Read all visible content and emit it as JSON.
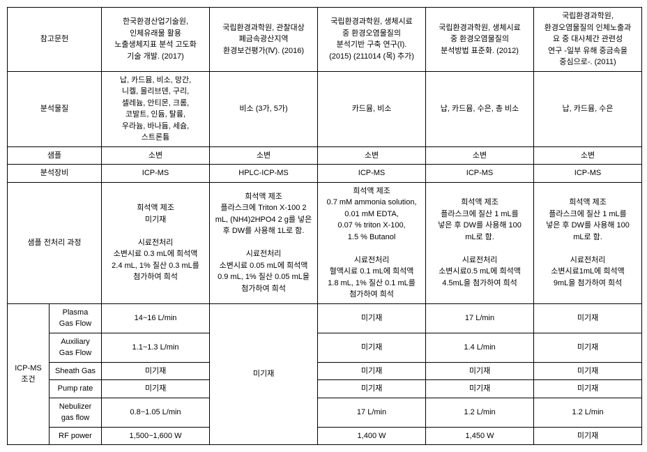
{
  "headers": {
    "ref": "참고문헌",
    "substance": "분석물질",
    "sample": "샘플",
    "equipment": "분석장비",
    "pretreatment": "샘플 전처리 과정",
    "icpms": "ICP-MS\n조건",
    "plasma": "Plasma\nGas Flow",
    "auxiliary": "Auxiliary\nGas Flow",
    "sheath": "Sheath Gas",
    "pump": "Pump rate",
    "nebulizer": "Nebulizer\ngas flow",
    "rfpower": "RF power"
  },
  "cols": {
    "c1": {
      "ref": "한국환경산업기술원,\n인체유래물 활용\n노출생체지표 분석 고도화\n기술 개발. (2017)",
      "substance": "납, 카드뮴, 비소, 망간,\n니켈, 몰리브덴, 구리,\n셀레늄, 안티몬, 크롬,\n코발트, 인듐, 탈륨,\n우라늄, 바나듐, 세슘,\n스트론튬",
      "sample": "소변",
      "equipment": "ICP-MS",
      "pretreatment": "희석액 제조\n미기재\n\n시료전처리\n소변시료 0.3 mL에 희석액\n2.4 mL, 1% 질산 0.3 mL를\n첨가하여 희석",
      "plasma": "14~16 L/min",
      "auxiliary": "1.1~1.3 L/min",
      "sheath": "미기재",
      "pump": "미기재",
      "nebulizer": "0.8~1.05 L/min",
      "rfpower": "1,500~1,600 W"
    },
    "c2": {
      "ref": "국립환경과학원, 관찰대상\n폐금속광산지역\n환경보건평가(Ⅳ). (2016)",
      "substance": "비소 (3가, 5가)",
      "sample": "소변",
      "equipment": "HPLC-ICP-MS",
      "pretreatment": "희석액 제조\n플라스크에 Triton X-100 2\nmL, (NH4)2HPO4 2 g를 넣은\n후 DW를 사용해 1L로 함.\n\n시료전처리\n소변시료 0.05 mL에 희석액\n0.9 mL, 1% 질산 0.05 mL을\n첨가하여 희석",
      "icpms_all": "미기재"
    },
    "c3": {
      "ref": "국립환경과학원, 생체시료\n중 환경오염물질의\n분석기반 구축 연구(Ⅰ).\n(2015) (211014 (목) 추가)",
      "substance": "카드뮴, 비소",
      "sample": "소변",
      "equipment": "ICP-MS",
      "pretreatment": "희석액 제조\n0.7 mM ammonia solution,\n0.01 mM EDTA,\n0.07 % triton X-100,\n1.5 % Butanol\n\n시료전처리\n혈액시료 0.1 mL에 희석액\n1.8 mL, 1% 질산 0.1 mL를\n첨가하여 희석",
      "plasma": "미기재",
      "auxiliary": "미기재",
      "sheath": "미기재",
      "pump": "미기재",
      "nebulizer": "17 L/min",
      "rfpower": "1,400 W"
    },
    "c4": {
      "ref": "국립환경과학원, 생체시료\n중 환경오염물질의\n분석방법 표준화. (2012)",
      "substance": "납, 카드뮴, 수은, 총 비소",
      "sample": "소변",
      "equipment": "ICP-MS",
      "pretreatment": "희석액 제조\n플라스크에 질산 1 mL를\n넣은 후 DW를 사용해 100\nmL로 함.\n\n시료전처리\n소변시료0.5 mL에 희석액\n4.5mL을 첨가하여 희석",
      "plasma": "17 L/min",
      "auxiliary": "1.4 L/min",
      "sheath": "미기재",
      "pump": "미기재",
      "nebulizer": "1.2 L/min",
      "rfpower": "1,450 W"
    },
    "c5": {
      "ref": "국립환경과학원,\n환경오염물질의 인체노출과\n요 중 대사체간 관련성\n연구 -일부 유해 중금속을\n중심으로-. (2011)",
      "substance": "납, 카드뮴, 수은",
      "sample": "소변",
      "equipment": "ICP-MS",
      "pretreatment": "희석액 제조\n플라스크에 질산 1 mL를\n넣은 후 DW를 사용해 100\nmL로 함.\n\n시료전처리\n소변시료1mL에 희석액\n9mL을 첨가하여 희석",
      "plasma": "미기재",
      "auxiliary": "미기재",
      "sheath": "미기재",
      "pump": "미기재",
      "nebulizer": "1.2 L/min",
      "rfpower": "미기재"
    }
  }
}
